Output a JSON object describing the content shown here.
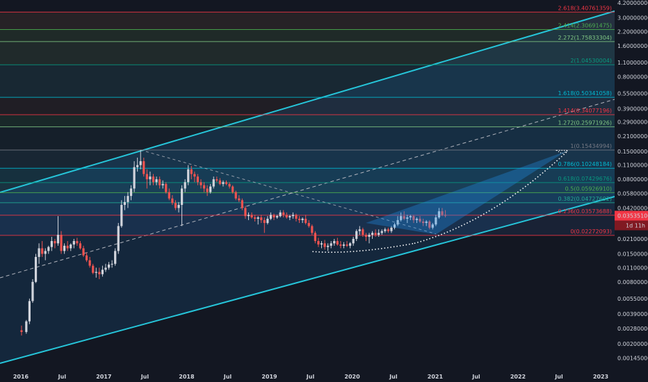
{
  "chart_data": {
    "type": "candlestick",
    "y_scale": "log",
    "ylim": [
      0.00135,
      4.2
    ],
    "y_ticks": [
      "4.20000000",
      "3.00000000",
      "2.20000000",
      "1.60000000",
      "1.10000000",
      "0.80000000",
      "0.55000000",
      "0.39000000",
      "0.29000000",
      "0.21000000",
      "0.15000000",
      "0.11000000",
      "0.08000000",
      "0.05800000",
      "0.04200000",
      "0.03000000",
      "0.02100000",
      "0.01500000",
      "0.01100000",
      "0.00800000",
      "0.00550000",
      "0.00390000",
      "0.00280000",
      "0.00200000",
      "0.00145000"
    ],
    "y_tick_values": [
      4.2,
      3.0,
      2.2,
      1.6,
      1.1,
      0.8,
      0.55,
      0.39,
      0.29,
      0.21,
      0.15,
      0.11,
      0.08,
      0.058,
      0.042,
      0.03,
      0.021,
      0.015,
      0.011,
      0.008,
      0.0055,
      0.0039,
      0.0028,
      0.002,
      0.00145
    ],
    "x_ticks": [
      "2016",
      "Jul",
      "2017",
      "Jul",
      "2018",
      "Jul",
      "2019",
      "Jul",
      "2020",
      "Jul",
      "2021",
      "Jul",
      "2022",
      "Jul",
      "2023"
    ],
    "x_tick_dates": [
      "2016-01-01",
      "2016-07-01",
      "2017-01-01",
      "2017-07-01",
      "2018-01-01",
      "2018-07-01",
      "2019-01-01",
      "2019-07-01",
      "2020-01-01",
      "2020-07-01",
      "2021-01-01",
      "2021-07-01",
      "2022-01-01",
      "2022-07-01",
      "2023-01-01"
    ],
    "fib_levels": [
      {
        "label": "0(0.02272093)",
        "value": 0.02272093,
        "color": "#f23645"
      },
      {
        "label": "0.236(0.03573688)",
        "value": 0.03573688,
        "color": "#f23645"
      },
      {
        "label": "0.382(0.04727692)",
        "value": 0.04727692,
        "color": "#22ab94"
      },
      {
        "label": "0.5(0.05926910)",
        "value": 0.0592691,
        "color": "#4caf50"
      },
      {
        "label": "0.618(0.07429676)",
        "value": 0.07429676,
        "color": "#089981"
      },
      {
        "label": "0.786(0.10248184)",
        "value": 0.10248184,
        "color": "#00bcd4"
      },
      {
        "label": "1(0.15434994)",
        "value": 0.15434994,
        "color": "#787b86"
      },
      {
        "label": "1.272(0.25971926)",
        "value": 0.25971926,
        "color": "#81c784"
      },
      {
        "label": "1.414(0.34077196)",
        "value": 0.34077196,
        "color": "#f23645"
      },
      {
        "label": "1.618(0.50341058)",
        "value": 0.50341058,
        "color": "#00bcd4"
      },
      {
        "label": "2(1.04530004)",
        "value": 1.04530004,
        "color": "#089981"
      },
      {
        "label": "2.272(1.75833304)",
        "value": 1.75833304,
        "color": "#81c784"
      },
      {
        "label": "2.414(2.30691475)",
        "value": 2.30691475,
        "color": "#4caf50"
      },
      {
        "label": "2.618(3.40761359)",
        "value": 3.40761359,
        "color": "#f23645"
      }
    ],
    "last_price": "0.03535100",
    "countdown": "1d 11h",
    "ohlc_weekly": [
      [
        "2016-01-04",
        0.0027,
        0.003,
        0.0024,
        0.0026
      ],
      [
        "2016-01-25",
        0.0026,
        0.0034,
        0.0025,
        0.0033
      ],
      [
        "2016-02-08",
        0.0033,
        0.0055,
        0.0031,
        0.0052
      ],
      [
        "2016-02-22",
        0.0052,
        0.0085,
        0.005,
        0.008
      ],
      [
        "2016-03-07",
        0.008,
        0.015,
        0.0078,
        0.014
      ],
      [
        "2016-03-21",
        0.014,
        0.019,
        0.012,
        0.017
      ],
      [
        "2016-04-04",
        0.017,
        0.02,
        0.014,
        0.015
      ],
      [
        "2016-04-18",
        0.015,
        0.017,
        0.013,
        0.016
      ],
      [
        "2016-05-02",
        0.016,
        0.018,
        0.015,
        0.0175
      ],
      [
        "2016-05-16",
        0.0175,
        0.022,
        0.016,
        0.02
      ],
      [
        "2016-05-30",
        0.02,
        0.021,
        0.017,
        0.019
      ],
      [
        "2016-06-13",
        0.019,
        0.035,
        0.018,
        0.023
      ],
      [
        "2016-06-27",
        0.023,
        0.025,
        0.015,
        0.016
      ],
      [
        "2016-07-11",
        0.016,
        0.019,
        0.015,
        0.018
      ],
      [
        "2016-07-25",
        0.018,
        0.02,
        0.016,
        0.017
      ],
      [
        "2016-08-08",
        0.017,
        0.019,
        0.016,
        0.0185
      ],
      [
        "2016-08-22",
        0.0185,
        0.021,
        0.017,
        0.02
      ],
      [
        "2016-09-05",
        0.02,
        0.0215,
        0.018,
        0.019
      ],
      [
        "2016-09-19",
        0.019,
        0.02,
        0.0165,
        0.017
      ],
      [
        "2016-10-03",
        0.017,
        0.018,
        0.014,
        0.0145
      ],
      [
        "2016-10-17",
        0.0145,
        0.0155,
        0.0125,
        0.013
      ],
      [
        "2016-10-31",
        0.013,
        0.014,
        0.011,
        0.0115
      ],
      [
        "2016-11-14",
        0.0115,
        0.012,
        0.0095,
        0.0098
      ],
      [
        "2016-11-28",
        0.0098,
        0.011,
        0.0088,
        0.01
      ],
      [
        "2016-12-12",
        0.01,
        0.011,
        0.0085,
        0.0095
      ],
      [
        "2016-12-26",
        0.0095,
        0.0115,
        0.009,
        0.0105
      ],
      [
        "2017-01-09",
        0.0105,
        0.012,
        0.01,
        0.011
      ],
      [
        "2017-01-23",
        0.011,
        0.0125,
        0.0105,
        0.0118
      ],
      [
        "2017-02-06",
        0.0118,
        0.013,
        0.011,
        0.012
      ],
      [
        "2017-02-20",
        0.012,
        0.017,
        0.0115,
        0.016
      ],
      [
        "2017-03-06",
        0.016,
        0.03,
        0.015,
        0.028
      ],
      [
        "2017-03-20",
        0.028,
        0.05,
        0.027,
        0.045
      ],
      [
        "2017-04-03",
        0.045,
        0.055,
        0.04,
        0.048
      ],
      [
        "2017-04-17",
        0.048,
        0.06,
        0.042,
        0.055
      ],
      [
        "2017-05-01",
        0.055,
        0.07,
        0.05,
        0.065
      ],
      [
        "2017-05-15",
        0.065,
        0.12,
        0.06,
        0.105
      ],
      [
        "2017-05-29",
        0.105,
        0.13,
        0.095,
        0.11
      ],
      [
        "2017-06-12",
        0.11,
        0.1543,
        0.1,
        0.12
      ],
      [
        "2017-06-26",
        0.12,
        0.13,
        0.085,
        0.09
      ],
      [
        "2017-07-10",
        0.09,
        0.1,
        0.065,
        0.08
      ],
      [
        "2017-07-24",
        0.08,
        0.095,
        0.07,
        0.085
      ],
      [
        "2017-08-07",
        0.085,
        0.09,
        0.07,
        0.075
      ],
      [
        "2017-08-21",
        0.075,
        0.085,
        0.07,
        0.08
      ],
      [
        "2017-09-04",
        0.08,
        0.085,
        0.065,
        0.07
      ],
      [
        "2017-09-18",
        0.07,
        0.078,
        0.065,
        0.072
      ],
      [
        "2017-10-02",
        0.072,
        0.075,
        0.058,
        0.06
      ],
      [
        "2017-10-16",
        0.06,
        0.065,
        0.05,
        0.052
      ],
      [
        "2017-10-30",
        0.052,
        0.056,
        0.045,
        0.047
      ],
      [
        "2017-11-13",
        0.047,
        0.05,
        0.04,
        0.042
      ],
      [
        "2017-11-27",
        0.042,
        0.048,
        0.038,
        0.045
      ],
      [
        "2017-12-11",
        0.045,
        0.07,
        0.028,
        0.065
      ],
      [
        "2017-12-25",
        0.065,
        0.08,
        0.06,
        0.075
      ],
      [
        "2018-01-08",
        0.075,
        0.11,
        0.07,
        0.1
      ],
      [
        "2018-01-22",
        0.1,
        0.108,
        0.08,
        0.09
      ],
      [
        "2018-02-05",
        0.09,
        0.095,
        0.075,
        0.085
      ],
      [
        "2018-02-19",
        0.085,
        0.09,
        0.07,
        0.075
      ],
      [
        "2018-03-05",
        0.075,
        0.08,
        0.065,
        0.07
      ],
      [
        "2018-03-19",
        0.07,
        0.075,
        0.06,
        0.065
      ],
      [
        "2018-04-02",
        0.065,
        0.07,
        0.055,
        0.06
      ],
      [
        "2018-04-16",
        0.06,
        0.072,
        0.058,
        0.068
      ],
      [
        "2018-04-30",
        0.068,
        0.085,
        0.065,
        0.08
      ],
      [
        "2018-05-14",
        0.08,
        0.085,
        0.075,
        0.078
      ],
      [
        "2018-05-28",
        0.078,
        0.082,
        0.07,
        0.072
      ],
      [
        "2018-06-11",
        0.072,
        0.078,
        0.068,
        0.075
      ],
      [
        "2018-06-25",
        0.075,
        0.078,
        0.07,
        0.072
      ],
      [
        "2018-07-09",
        0.072,
        0.075,
        0.065,
        0.068
      ],
      [
        "2018-07-23",
        0.068,
        0.07,
        0.058,
        0.06
      ],
      [
        "2018-08-06",
        0.06,
        0.062,
        0.05,
        0.052
      ],
      [
        "2018-08-20",
        0.052,
        0.056,
        0.048,
        0.05
      ],
      [
        "2018-09-03",
        0.05,
        0.052,
        0.04,
        0.042
      ],
      [
        "2018-09-17",
        0.042,
        0.044,
        0.033,
        0.035
      ],
      [
        "2018-10-01",
        0.035,
        0.038,
        0.032,
        0.036
      ],
      [
        "2018-10-15",
        0.036,
        0.038,
        0.033,
        0.034
      ],
      [
        "2018-10-29",
        0.034,
        0.036,
        0.031,
        0.033
      ],
      [
        "2018-11-12",
        0.033,
        0.035,
        0.029,
        0.034
      ],
      [
        "2018-11-26",
        0.034,
        0.036,
        0.03,
        0.032
      ],
      [
        "2018-12-10",
        0.032,
        0.034,
        0.024,
        0.03
      ],
      [
        "2018-12-24",
        0.03,
        0.035,
        0.029,
        0.033
      ],
      [
        "2019-01-07",
        0.033,
        0.038,
        0.032,
        0.036
      ],
      [
        "2019-01-21",
        0.036,
        0.037,
        0.032,
        0.034
      ],
      [
        "2019-02-04",
        0.034,
        0.036,
        0.033,
        0.035
      ],
      [
        "2019-02-18",
        0.035,
        0.04,
        0.034,
        0.038
      ],
      [
        "2019-03-04",
        0.038,
        0.04,
        0.034,
        0.036
      ],
      [
        "2019-03-18",
        0.036,
        0.038,
        0.033,
        0.034
      ],
      [
        "2019-04-01",
        0.034,
        0.036,
        0.032,
        0.035
      ],
      [
        "2019-04-15",
        0.035,
        0.038,
        0.033,
        0.036
      ],
      [
        "2019-04-29",
        0.036,
        0.037,
        0.031,
        0.033
      ],
      [
        "2019-05-13",
        0.033,
        0.035,
        0.03,
        0.032
      ],
      [
        "2019-05-27",
        0.032,
        0.034,
        0.03,
        0.033
      ],
      [
        "2019-06-10",
        0.033,
        0.036,
        0.029,
        0.03
      ],
      [
        "2019-06-24",
        0.03,
        0.032,
        0.027,
        0.028
      ],
      [
        "2019-07-08",
        0.028,
        0.029,
        0.023,
        0.024
      ],
      [
        "2019-07-22",
        0.024,
        0.025,
        0.019,
        0.02
      ],
      [
        "2019-08-05",
        0.02,
        0.0215,
        0.0175,
        0.0185
      ],
      [
        "2019-08-19",
        0.0185,
        0.02,
        0.017,
        0.019
      ],
      [
        "2019-09-02",
        0.019,
        0.0205,
        0.0165,
        0.0175
      ],
      [
        "2019-09-16",
        0.0175,
        0.019,
        0.016,
        0.018
      ],
      [
        "2019-09-30",
        0.018,
        0.02,
        0.017,
        0.019
      ],
      [
        "2019-10-14",
        0.019,
        0.021,
        0.018,
        0.02
      ],
      [
        "2019-10-28",
        0.02,
        0.0215,
        0.018,
        0.0185
      ],
      [
        "2019-11-11",
        0.0185,
        0.02,
        0.017,
        0.018
      ],
      [
        "2019-11-25",
        0.018,
        0.0195,
        0.017,
        0.0185
      ],
      [
        "2019-12-09",
        0.0185,
        0.02,
        0.0175,
        0.018
      ],
      [
        "2019-12-23",
        0.018,
        0.0195,
        0.017,
        0.019
      ],
      [
        "2020-01-06",
        0.019,
        0.022,
        0.018,
        0.021
      ],
      [
        "2020-01-20",
        0.021,
        0.026,
        0.02,
        0.025
      ],
      [
        "2020-02-03",
        0.025,
        0.028,
        0.023,
        0.026
      ],
      [
        "2020-02-17",
        0.026,
        0.027,
        0.022,
        0.023
      ],
      [
        "2020-03-02",
        0.023,
        0.024,
        0.02,
        0.022
      ],
      [
        "2020-03-16",
        0.022,
        0.024,
        0.019,
        0.023
      ],
      [
        "2020-03-30",
        0.023,
        0.025,
        0.021,
        0.024
      ],
      [
        "2020-04-13",
        0.024,
        0.026,
        0.022,
        0.023
      ],
      [
        "2020-04-27",
        0.023,
        0.026,
        0.022,
        0.024
      ],
      [
        "2020-05-11",
        0.024,
        0.026,
        0.023,
        0.025
      ],
      [
        "2020-05-25",
        0.025,
        0.027,
        0.024,
        0.026
      ],
      [
        "2020-06-08",
        0.026,
        0.027,
        0.024,
        0.025
      ],
      [
        "2020-06-22",
        0.025,
        0.028,
        0.024,
        0.027
      ],
      [
        "2020-07-06",
        0.027,
        0.03,
        0.026,
        0.029
      ],
      [
        "2020-07-20",
        0.029,
        0.035,
        0.028,
        0.032
      ],
      [
        "2020-08-03",
        0.032,
        0.038,
        0.031,
        0.035
      ],
      [
        "2020-08-17",
        0.035,
        0.039,
        0.032,
        0.033
      ],
      [
        "2020-08-31",
        0.033,
        0.036,
        0.03,
        0.034
      ],
      [
        "2020-09-14",
        0.034,
        0.036,
        0.032,
        0.035
      ],
      [
        "2020-09-28",
        0.035,
        0.036,
        0.03,
        0.032
      ],
      [
        "2020-10-12",
        0.032,
        0.034,
        0.03,
        0.033
      ],
      [
        "2020-10-26",
        0.033,
        0.035,
        0.03,
        0.031
      ],
      [
        "2020-11-09",
        0.031,
        0.033,
        0.028,
        0.03
      ],
      [
        "2020-11-23",
        0.03,
        0.032,
        0.028,
        0.031
      ],
      [
        "2020-12-07",
        0.031,
        0.032,
        0.026,
        0.027
      ],
      [
        "2020-12-21",
        0.027,
        0.03,
        0.026,
        0.029
      ],
      [
        "2021-01-04",
        0.029,
        0.036,
        0.028,
        0.034
      ],
      [
        "2021-01-18",
        0.034,
        0.042,
        0.033,
        0.039
      ],
      [
        "2021-02-01",
        0.039,
        0.042,
        0.035,
        0.036
      ],
      [
        "2021-02-15",
        0.036,
        0.04,
        0.034,
        0.0353
      ]
    ]
  }
}
